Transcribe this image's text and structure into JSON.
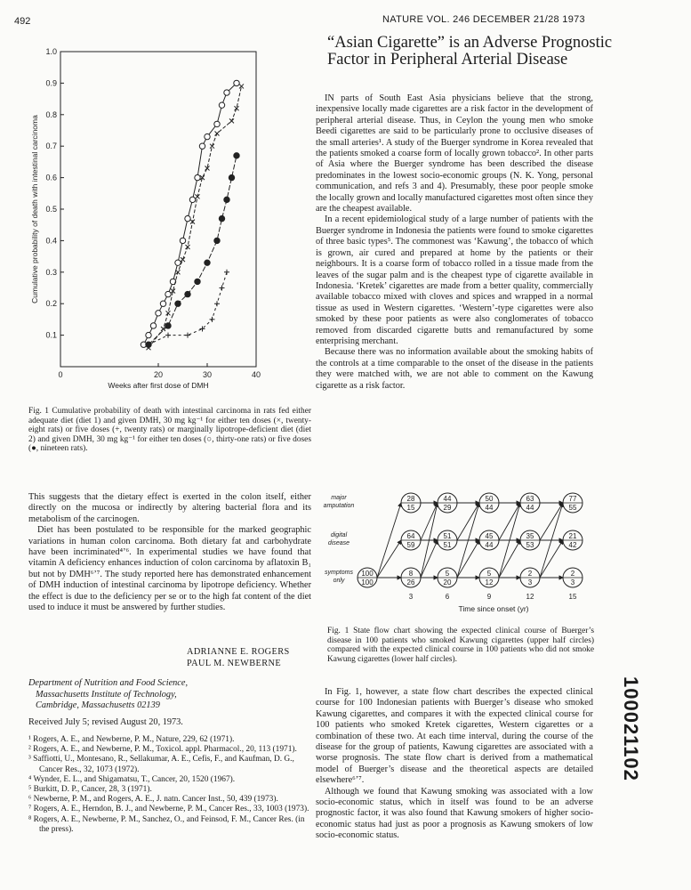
{
  "page_number": "492",
  "header": "NATURE VOL. 246 DECEMBER 21/28 1973",
  "chart_data": {
    "type": "line",
    "xlabel": "Weeks after first dose of DMH",
    "ylabel": "Cumulative probability of death with intestinal carcinoma",
    "xlim": [
      0,
      40
    ],
    "ylim": [
      0,
      1.0
    ],
    "x_ticks": [
      "0",
      "20",
      "30",
      "40"
    ],
    "y_ticks": [
      "0.1",
      "0.2",
      "0.3",
      "0.4",
      "0.5",
      "0.6",
      "0.7",
      "0.8",
      "0.9",
      "1.0"
    ],
    "series": [
      {
        "marker": "circle-open",
        "points": [
          [
            17,
            0.07
          ],
          [
            18,
            0.1
          ],
          [
            19,
            0.13
          ],
          [
            20,
            0.17
          ],
          [
            21,
            0.2
          ],
          [
            22,
            0.23
          ],
          [
            23,
            0.27
          ],
          [
            24,
            0.33
          ],
          [
            25,
            0.4
          ],
          [
            26,
            0.47
          ],
          [
            27,
            0.53
          ],
          [
            28,
            0.6
          ],
          [
            29,
            0.7
          ],
          [
            30,
            0.73
          ],
          [
            32,
            0.77
          ],
          [
            33,
            0.83
          ],
          [
            34,
            0.87
          ],
          [
            36,
            0.9
          ]
        ]
      },
      {
        "marker": "cross",
        "points": [
          [
            18,
            0.06
          ],
          [
            21,
            0.12
          ],
          [
            22,
            0.17
          ],
          [
            23,
            0.24
          ],
          [
            24,
            0.3
          ],
          [
            25,
            0.34
          ],
          [
            26,
            0.38
          ],
          [
            27,
            0.46
          ],
          [
            28,
            0.54
          ],
          [
            29,
            0.6
          ],
          [
            30,
            0.63
          ],
          [
            31,
            0.7
          ],
          [
            32,
            0.74
          ],
          [
            35,
            0.78
          ],
          [
            36,
            0.82
          ],
          [
            37,
            0.89
          ]
        ]
      },
      {
        "marker": "circle-filled",
        "points": [
          [
            18,
            0.07
          ],
          [
            22,
            0.13
          ],
          [
            24,
            0.2
          ],
          [
            26,
            0.23
          ],
          [
            28,
            0.27
          ],
          [
            30,
            0.33
          ],
          [
            32,
            0.4
          ],
          [
            33,
            0.47
          ],
          [
            34,
            0.53
          ],
          [
            35,
            0.6
          ],
          [
            36,
            0.67
          ]
        ]
      },
      {
        "marker": "plus",
        "points": [
          [
            18,
            0.07
          ],
          [
            22,
            0.1
          ],
          [
            26,
            0.1
          ],
          [
            29,
            0.12
          ],
          [
            31,
            0.15
          ],
          [
            32,
            0.2
          ],
          [
            33,
            0.25
          ],
          [
            34,
            0.3
          ]
        ]
      }
    ]
  },
  "fig1_caption": "Fig. 1 Cumulative probability of death with intestinal carcinoma in rats fed either adequate diet (diet 1) and given DMH, 30 mg kg⁻¹ for either ten doses (×, twenty-eight rats) or five doses (+, twenty rats) or marginally lipotrope-deficient diet (diet 2) and given DMH, 30 mg kg⁻¹ for either ten doses (○, thirty-one rats) or five doses (●, nineteen rats).",
  "left_paragraphs": [
    "This suggests that the dietary effect is exerted in the colon itself, either directly on the mucosa or indirectly by altering bacterial flora and its metabolism of the carcinogen.",
    "Diet has been postulated to be responsible for the marked geographic variations in human colon carcinoma. Both dietary fat and carbohydrate have been incriminated⁴’⁶. In experimental studies we have found that vitamin A deficiency enhances induction of colon carcinoma by aflatoxin B₁ but not by DMH⁶’⁷. The study reported here has demonstrated enhancement of DMH induction of intestinal carcinoma by lipotrope deficiency. Whether the effect is due to the deficiency per se or to the high fat content of the diet used to induce it must be answered by further studies."
  ],
  "authors": [
    "ADRIANNE E. ROGERS",
    "PAUL M. NEWBERNE"
  ],
  "affiliation": [
    "Department of Nutrition and Food Science,",
    "Massachusetts Institute of Technology,",
    "Cambridge, Massachusetts 02139"
  ],
  "received": "Received July 5; revised August 20, 1973.",
  "references": [
    "¹ Rogers, A. E., and Newberne, P. M., Nature, 229, 62 (1971).",
    "² Rogers, A. E., and Newberne, P. M., Toxicol. appl. Pharmacol., 20, 113 (1971).",
    "³ Saffiotti, U., Montesano, R., Sellakumar, A. E., Cefis, F., and Kaufman, D. G., Cancer Res., 32, 1073 (1972).",
    "⁴ Wynder, E. L., and Shigamatsu, T., Cancer, 20, 1520 (1967).",
    "⁵ Burkitt, D. P., Cancer, 28, 3 (1971).",
    "⁶ Newberne, P. M., and Rogers, A. E., J. natn. Cancer Inst., 50, 439 (1973).",
    "⁷ Rogers, A. E., Herndon, B. J., and Newberne, P. M., Cancer Res., 33, 1003 (1973).",
    "⁸ Rogers, A. E., Newberne, P. M., Sanchez, O., and Feinsod, F. M., Cancer Res. (in the press)."
  ],
  "article_title": "“Asian Cigarette” is an Adverse Prognostic Factor in Peripheral Arterial Disease",
  "right_paragraphs": [
    "IN parts of South East Asia physicians believe that the strong, inexpensive locally made cigarettes are a risk factor in the development of peripheral arterial disease. Thus, in Ceylon the young men who smoke Beedi cigarettes are said to be particularly prone to occlusive diseases of the small arteries¹. A study of the Buerger syndrome in Korea revealed that the patients smoked a coarse form of locally grown tobacco². In other parts of Asia where the Buerger syndrome has been described the disease predominates in the lowest socio-economic groups (N. K. Yong, personal communication, and refs 3 and 4). Presumably, these poor people smoke the locally grown and locally manufactured cigarettes most often since they are the cheapest available.",
    "In a recent epidemiological study of a large number of patients with the Buerger syndrome in Indonesia the patients were found to smoke cigarettes of three basic types⁵. The commonest was ‘Kawung’, the tobacco of which is grown, air cured and prepared at home by the patients or their neighbours. It is a coarse form of tobacco rolled in a tissue made from the leaves of the sugar palm and is the cheapest type of cigarette available in Indonesia. ‘Kretek’ cigarettes are made from a better quality, commercially available tobacco mixed with cloves and spices and wrapped in a normal tissue as used in Western cigarettes. ‘Western’-type cigarettes were also smoked by these poor patients as were also conglomerates of tobacco removed from discarded cigarette butts and remanufactured by some enterprising merchant.",
    "Because there was no information available about the smoking habits of the controls at a time comparable to the onset of the disease in the patients they were matched with, we are not able to comment on the Kawung cigarette as a risk factor."
  ],
  "flow_chart": {
    "row_labels": [
      [
        "major",
        "amputation"
      ],
      [
        "digital",
        "disease"
      ],
      [
        "symptoms",
        "only"
      ]
    ],
    "x_label": "Time since onset (yr)",
    "x_ticks": [
      "3",
      "6",
      "9",
      "12",
      "15"
    ],
    "start_node": [
      "100",
      "100"
    ],
    "rows": [
      [
        [
          "28",
          "15"
        ],
        [
          "44",
          "29"
        ],
        [
          "50",
          "44"
        ],
        [
          "63",
          "44"
        ],
        [
          "77",
          "55"
        ]
      ],
      [
        [
          "64",
          "59"
        ],
        [
          "51",
          "51"
        ],
        [
          "45",
          "44"
        ],
        [
          "35",
          "53"
        ],
        [
          "21",
          "42"
        ]
      ],
      [
        [
          "8",
          "26"
        ],
        [
          "5",
          "20"
        ],
        [
          "5",
          "12"
        ],
        [
          "2",
          "3"
        ],
        [
          "2",
          "3"
        ]
      ]
    ]
  },
  "flow_caption": "Fig. 1 State flow chart showing the expected clinical course of Buerger’s disease in 100 patients who smoked Kawung cigarettes (upper half circles) compared with the expected clinical course in 100 patients who did not smoke Kawung cigarettes (lower half circles).",
  "right_paragraphs2": [
    "In Fig. 1, however, a state flow chart describes the expected clinical course for 100 Indonesian patients with Buerger’s disease who smoked Kawung cigarettes, and compares it with the expected clinical course for 100 patients who smoked Kretek cigarettes, Western cigarettes or a combination of these two. At each time interval, during the course of the disease for the group of patients, Kawung cigarettes are associated with a worse prognosis. The state flow chart is derived from a mathematical model of Buerger’s disease and the theoretical aspects are detailed elsewhere⁶’⁷.",
    "Although we found that Kawung smoking was associated with a low socio-economic status, which in itself was found to be an adverse prognostic factor, it was also found that Kawung smokers of higher socio-economic status had just as poor a prognosis as Kawung smokers of low socio-economic status."
  ],
  "side_number": "100021102"
}
